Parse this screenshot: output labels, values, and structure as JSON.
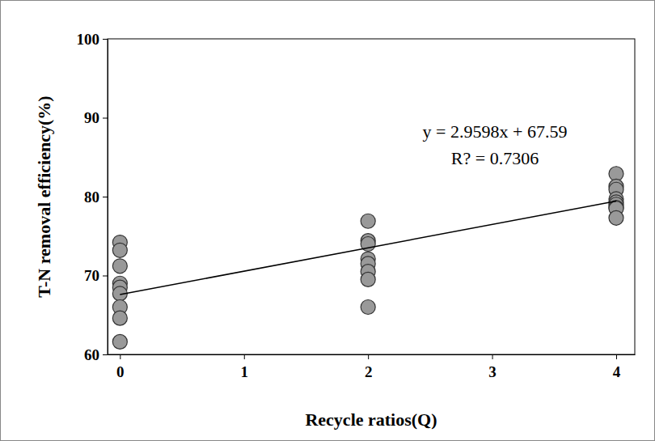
{
  "chart_data": {
    "type": "scatter",
    "x_label": "Recycle ratios(Q)",
    "y_label": "T-N removal efficiency(%)",
    "annotations": [
      "y = 2.9598x + 67.59",
      "R? = 0.7306"
    ],
    "xlim": [
      -0.1,
      4.15
    ],
    "xticks": [
      0,
      1,
      2,
      3,
      4
    ],
    "ylim": [
      60,
      100
    ],
    "yticks": [
      60,
      70,
      80,
      90,
      100
    ],
    "grid": false,
    "series": [
      {
        "type": "scatter",
        "marker": "circle",
        "color": "#999999",
        "x": [
          0,
          0,
          0,
          0,
          0,
          0,
          0,
          0,
          0,
          2,
          2,
          2,
          2,
          2,
          2,
          2,
          2,
          4,
          4,
          4,
          4,
          4,
          4,
          4,
          4,
          4
        ],
        "values": [
          74.2,
          73.2,
          71.2,
          69.0,
          68.5,
          67.7,
          66.0,
          64.6,
          61.6,
          76.9,
          74.4,
          74.0,
          72.1,
          71.5,
          70.5,
          69.5,
          66.0,
          82.9,
          81.3,
          80.9,
          79.7,
          79.3,
          79.0,
          78.6,
          78.5,
          77.3
        ]
      },
      {
        "type": "line",
        "line_style": "solid",
        "color": "#000000",
        "x": [
          0,
          4
        ],
        "values": [
          67.59,
          79.43
        ]
      }
    ]
  }
}
